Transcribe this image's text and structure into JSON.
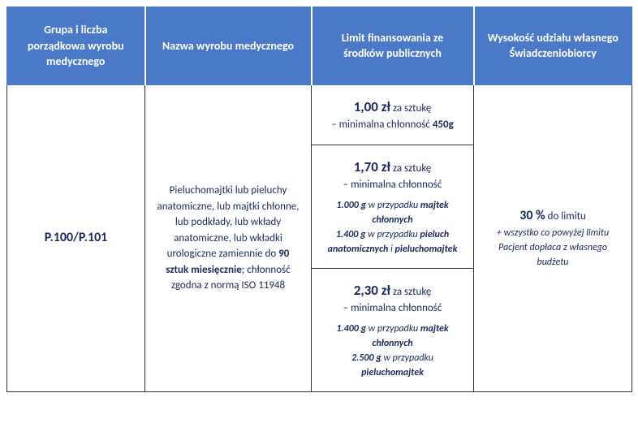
{
  "colors": {
    "header_bg": "#4a7ac7",
    "header_text": "#ffffff",
    "body_text": "#1a2a5a",
    "border": "#333333",
    "background": "#ffffff"
  },
  "headers": {
    "col1": "Grupa i liczba porządkowa wyrobu medycznego",
    "col2": "Nazwa wyrobu medycznego",
    "col3": "Limit finansowania ze środków publicznych",
    "col4": "Wysokość udziału własnego Świadczeniobiorcy"
  },
  "code": "P.100/P.101",
  "product": {
    "line1": "Pieluchomajtki lub pieluchy anatomiczne, lub majtki chłonne, lub podkłady, lub wkłady anatomiczne, lub wkładki urologiczne zamiennie do ",
    "bold1": "90 sztuk miesięcznie",
    "line2": "; chłonność zgodna z normą ISO 11948"
  },
  "limits": {
    "tier1": {
      "price": "1,00 zł",
      "suffix": " za sztukę",
      "sub": "– minimalna chłonność ",
      "val": "450g"
    },
    "tier2": {
      "price": "1,70 zł",
      "suffix": " za sztukę",
      "sub": "– minimalna chłonność",
      "spec1_val": "1.000 g",
      "spec1_txt": " w przypadku ",
      "spec1_bold": "majtek chłonnych",
      "spec2_val": "1.400 g",
      "spec2_txt": " w przypadku ",
      "spec2_bold": "pieluch anatomicznych",
      "spec2_and": " i ",
      "spec2_bold2": "pieluchomajtek"
    },
    "tier3": {
      "price": "2,30 zł",
      "suffix": " za sztukę",
      "sub": "– minimalna chłonność",
      "spec1_val": "1.400 g",
      "spec1_txt": " w przypadku ",
      "spec1_bold": "majtek chłonnych",
      "spec2_val": "2.500 g",
      "spec2_txt": " w przypadku ",
      "spec2_bold": "pieluchomajtek"
    }
  },
  "share": {
    "percent": "30 %",
    "suffix": " do limitu",
    "note": "+ wszystko co powyżej limitu Pacjent dopłaca z własnego budżetu"
  }
}
